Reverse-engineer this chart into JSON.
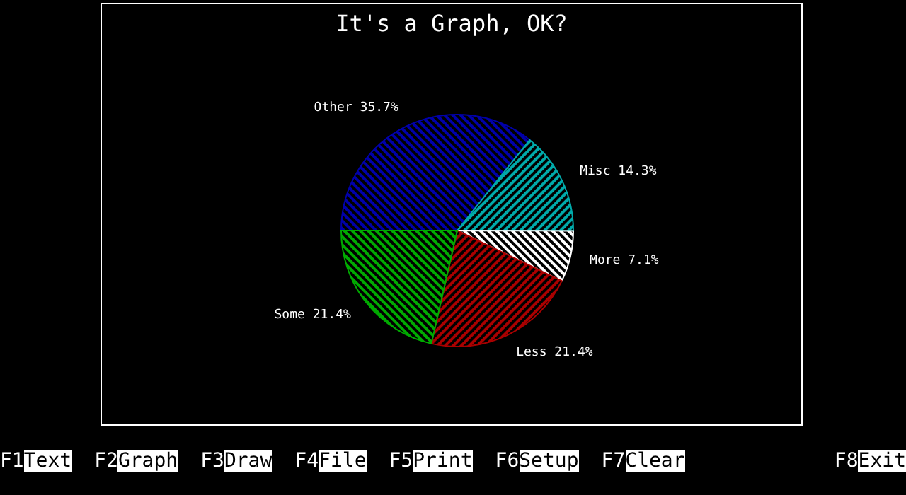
{
  "chart_data": {
    "type": "pie",
    "title": "It's a Graph, OK?",
    "categories": [
      "Other",
      "Misc",
      "More",
      "Less",
      "Some"
    ],
    "values": [
      35.7,
      14.3,
      7.1,
      21.4,
      21.4
    ],
    "value_labels": [
      "35.7%",
      "14.3%",
      "7.1%",
      "21.4%",
      "21.4%"
    ],
    "colors": [
      "#0000aa",
      "#00aaaa",
      "#ffffff",
      "#aa0000",
      "#00aa00"
    ],
    "legend": false,
    "annotations": [
      "F1",
      "Text",
      "F2",
      "Graph",
      "F3",
      "Draw",
      "F4",
      "File",
      "F5",
      "Print",
      "F6",
      "Setup",
      "F7",
      "Clear",
      "F8",
      "Exit"
    ]
  }
}
